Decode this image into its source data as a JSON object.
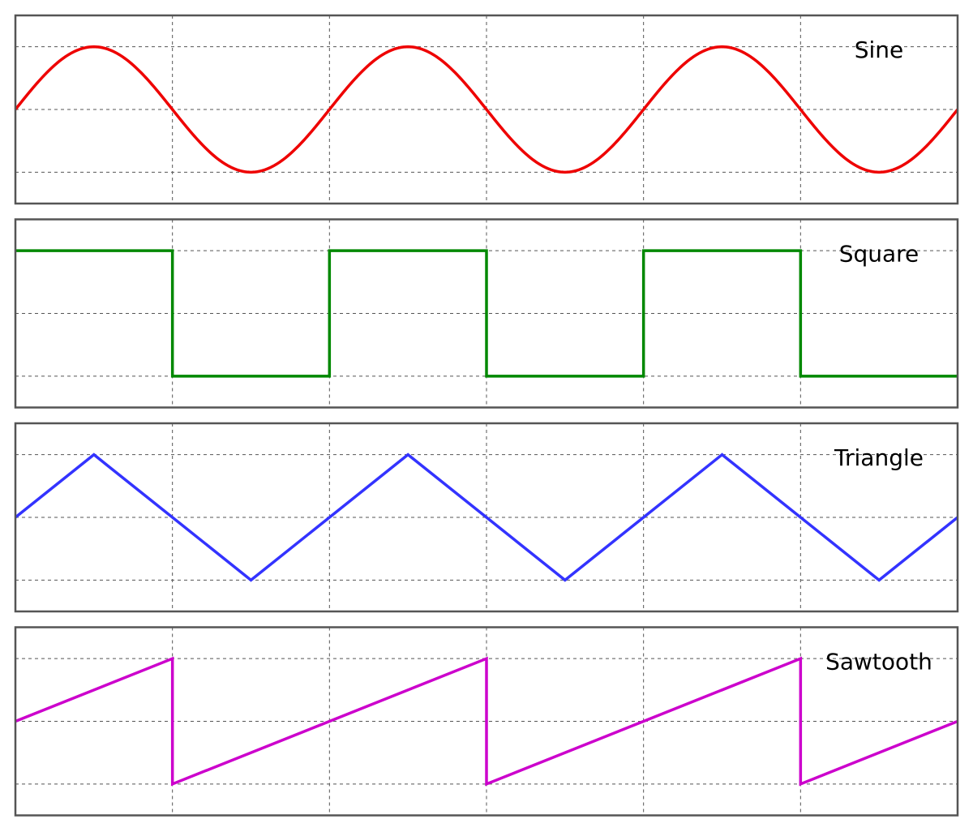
{
  "chart_data": [
    {
      "type": "line",
      "title": "Sine",
      "waveform": "sine",
      "color": "#ee0000",
      "series": [
        {
          "x": [
            0,
            0.125,
            0.25,
            0.375,
            0.5,
            0.625,
            0.75,
            0.875,
            1,
            1.125,
            1.25,
            1.375,
            1.5,
            1.625,
            1.75,
            1.875,
            2,
            2.125,
            2.25,
            2.375,
            2.5,
            2.625,
            2.75,
            2.875,
            3
          ],
          "y": [
            0,
            0.707,
            1,
            0.707,
            0,
            -0.707,
            -1,
            -0.707,
            0,
            0.707,
            1,
            0.707,
            0,
            -0.707,
            -1,
            -0.707,
            0,
            0.707,
            1,
            0.707,
            0,
            -0.707,
            -1,
            -0.707,
            0
          ]
        }
      ],
      "xlim": [
        0,
        3
      ],
      "ylim": [
        -1.5,
        1.5
      ],
      "grid": true,
      "xlabel": "",
      "ylabel": ""
    },
    {
      "type": "line",
      "title": "Square",
      "waveform": "square",
      "color": "#008800",
      "series": [
        {
          "x": [
            0,
            0.5,
            0.5,
            1,
            1,
            1.5,
            1.5,
            2,
            2,
            2.5,
            2.5,
            3
          ],
          "y": [
            1,
            1,
            -1,
            -1,
            1,
            1,
            -1,
            -1,
            1,
            1,
            -1,
            -1
          ]
        }
      ],
      "xlim": [
        0,
        3
      ],
      "ylim": [
        -1.5,
        1.5
      ],
      "grid": true,
      "xlabel": "",
      "ylabel": ""
    },
    {
      "type": "line",
      "title": "Triangle",
      "waveform": "triangle",
      "color": "#3333ff",
      "series": [
        {
          "x": [
            0,
            0.25,
            0.75,
            1.25,
            1.75,
            2.25,
            2.75,
            3
          ],
          "y": [
            0,
            1,
            -1,
            1,
            -1,
            1,
            -1,
            0
          ]
        }
      ],
      "xlim": [
        0,
        3
      ],
      "ylim": [
        -1.5,
        1.5
      ],
      "grid": true,
      "xlabel": "",
      "ylabel": ""
    },
    {
      "type": "line",
      "title": "Sawtooth",
      "waveform": "sawtooth",
      "color": "#cc00cc",
      "series": [
        {
          "x": [
            0,
            0.5,
            0.5,
            1.5,
            1.5,
            2.5,
            2.5,
            3
          ],
          "y": [
            0,
            1,
            -1,
            1,
            -1,
            1,
            -1,
            0
          ]
        }
      ],
      "xlim": [
        0,
        3
      ],
      "ylim": [
        -1.5,
        1.5
      ],
      "grid": true,
      "xlabel": "",
      "ylabel": ""
    }
  ]
}
